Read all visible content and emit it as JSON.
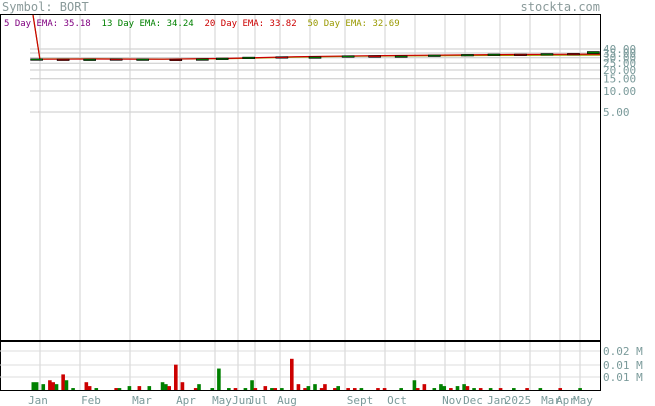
{
  "header": {
    "symbol_label": "Symbol: BORT",
    "brand": "stockta.com"
  },
  "legend": [
    {
      "label": "5 Day EMA:",
      "value": "35.18",
      "color": "#800080"
    },
    {
      "label": "13 Day EMA:",
      "value": "34.24",
      "color": "#008000"
    },
    {
      "label": "20 Day EMA:",
      "value": "33.82",
      "color": "#cc0000"
    },
    {
      "label": "50 Day EMA:",
      "value": "32.69",
      "color": "#999900"
    }
  ],
  "chart_data": {
    "type": "candlestick",
    "price_axis": {
      "scale": "log",
      "ticks": [
        "40.00",
        "35.00",
        "30.00",
        "25.00",
        "20.00",
        "15.00",
        "10.00",
        "5.00"
      ],
      "tick_values": [
        40,
        35,
        30,
        25,
        20,
        15,
        10,
        5
      ]
    },
    "volume_axis": {
      "ticks": [
        "0.02 M",
        "0.01 M",
        "0.01 M"
      ],
      "tick_values": [
        0.02,
        0.015,
        0.01
      ]
    },
    "x_labels": [
      "Jan",
      "Feb",
      "Mar",
      "Apr",
      "May",
      "Jun",
      "Jul",
      "Aug",
      "Sept",
      "Oct",
      "Nov",
      "Dec",
      "Jan",
      "2025",
      "Mar",
      "Apr",
      "May"
    ],
    "grid": true,
    "series": [
      {
        "name": "50 Day EMA",
        "color": "#999900",
        "points": [
          [
            0,
            470
          ],
          [
            3,
            28.8
          ],
          [
            20,
            28.9
          ],
          [
            40,
            28.7
          ],
          [
            60,
            29.0
          ],
          [
            80,
            30.5
          ],
          [
            100,
            31.5
          ],
          [
            120,
            32.0
          ],
          [
            140,
            32.4
          ],
          [
            160,
            32.6
          ],
          [
            172,
            32.69
          ]
        ]
      },
      {
        "name": "20 Day EMA",
        "color": "#cc0000",
        "points": [
          [
            0,
            420
          ],
          [
            3,
            28.6
          ],
          [
            20,
            28.8
          ],
          [
            40,
            28.6
          ],
          [
            60,
            29.3
          ],
          [
            80,
            31.0
          ],
          [
            100,
            32.0
          ],
          [
            120,
            32.6
          ],
          [
            140,
            33.2
          ],
          [
            160,
            33.6
          ],
          [
            172,
            33.82
          ]
        ]
      }
    ],
    "candles": [
      {
        "t": 2,
        "o": 28.5,
        "c": 28.9
      },
      {
        "t": 10,
        "o": 28.7,
        "c": 28.4
      },
      {
        "t": 18,
        "o": 28.4,
        "c": 28.7
      },
      {
        "t": 26,
        "o": 28.9,
        "c": 28.5
      },
      {
        "t": 34,
        "o": 28.4,
        "c": 28.8
      },
      {
        "t": 44,
        "o": 28.6,
        "c": 28.5
      },
      {
        "t": 52,
        "o": 28.6,
        "c": 28.9
      },
      {
        "t": 58,
        "o": 29.1,
        "c": 29.6
      },
      {
        "t": 66,
        "o": 29.8,
        "c": 30.6
      },
      {
        "t": 76,
        "o": 31.0,
        "c": 30.4
      },
      {
        "t": 86,
        "o": 30.5,
        "c": 30.9
      },
      {
        "t": 96,
        "o": 31.2,
        "c": 32.0
      },
      {
        "t": 104,
        "o": 32.0,
        "c": 31.4
      },
      {
        "t": 112,
        "o": 31.6,
        "c": 31.9
      },
      {
        "t": 122,
        "o": 32.2,
        "c": 32.8
      },
      {
        "t": 132,
        "o": 33.0,
        "c": 33.4
      },
      {
        "t": 140,
        "o": 33.1,
        "c": 33.9
      },
      {
        "t": 148,
        "o": 33.8,
        "c": 33.4
      },
      {
        "t": 156,
        "o": 33.6,
        "c": 34.4
      },
      {
        "t": 164,
        "o": 34.6,
        "c": 34.2
      },
      {
        "t": 170,
        "o": 34.4,
        "c": 36.8
      }
    ],
    "volume_bars": [
      {
        "t": 1,
        "v": 0.004,
        "up": true
      },
      {
        "t": 2,
        "v": 0.004,
        "up": true
      },
      {
        "t": 4,
        "v": 0.003,
        "up": true
      },
      {
        "t": 6,
        "v": 0.005,
        "up": false
      },
      {
        "t": 7,
        "v": 0.004,
        "up": false
      },
      {
        "t": 8,
        "v": 0.003,
        "up": true
      },
      {
        "t": 10,
        "v": 0.008,
        "up": false
      },
      {
        "t": 11,
        "v": 0.005,
        "up": true
      },
      {
        "t": 13,
        "v": 0.001,
        "up": true
      },
      {
        "t": 17,
        "v": 0.004,
        "up": false
      },
      {
        "t": 18,
        "v": 0.002,
        "up": false
      },
      {
        "t": 20,
        "v": 0.001,
        "up": true
      },
      {
        "t": 26,
        "v": 0.001,
        "up": false
      },
      {
        "t": 27,
        "v": 0.001,
        "up": true
      },
      {
        "t": 30,
        "v": 0.002,
        "up": true
      },
      {
        "t": 33,
        "v": 0.002,
        "up": false
      },
      {
        "t": 36,
        "v": 0.002,
        "up": true
      },
      {
        "t": 40,
        "v": 0.004,
        "up": true
      },
      {
        "t": 41,
        "v": 0.003,
        "up": true
      },
      {
        "t": 42,
        "v": 0.002,
        "up": false
      },
      {
        "t": 44,
        "v": 0.013,
        "up": false
      },
      {
        "t": 46,
        "v": 0.004,
        "up": false
      },
      {
        "t": 50,
        "v": 0.001,
        "up": false
      },
      {
        "t": 51,
        "v": 0.003,
        "up": true
      },
      {
        "t": 55,
        "v": 0.001,
        "up": true
      },
      {
        "t": 57,
        "v": 0.011,
        "up": true
      },
      {
        "t": 60,
        "v": 0.001,
        "up": true
      },
      {
        "t": 62,
        "v": 0.001,
        "up": false
      },
      {
        "t": 65,
        "v": 0.001,
        "up": true
      },
      {
        "t": 67,
        "v": 0.005,
        "up": true
      },
      {
        "t": 68,
        "v": 0.001,
        "up": false
      },
      {
        "t": 71,
        "v": 0.002,
        "up": false
      },
      {
        "t": 73,
        "v": 0.001,
        "up": true
      },
      {
        "t": 74,
        "v": 0.001,
        "up": false
      },
      {
        "t": 76,
        "v": 0.001,
        "up": true
      },
      {
        "t": 79,
        "v": 0.016,
        "up": false
      },
      {
        "t": 81,
        "v": 0.003,
        "up": false
      },
      {
        "t": 83,
        "v": 0.001,
        "up": false
      },
      {
        "t": 84,
        "v": 0.002,
        "up": true
      },
      {
        "t": 86,
        "v": 0.003,
        "up": true
      },
      {
        "t": 88,
        "v": 0.001,
        "up": false
      },
      {
        "t": 89,
        "v": 0.003,
        "up": false
      },
      {
        "t": 92,
        "v": 0.001,
        "up": false
      },
      {
        "t": 93,
        "v": 0.002,
        "up": true
      },
      {
        "t": 96,
        "v": 0.001,
        "up": false
      },
      {
        "t": 98,
        "v": 0.001,
        "up": false
      },
      {
        "t": 100,
        "v": 0.001,
        "up": true
      },
      {
        "t": 105,
        "v": 0.001,
        "up": false
      },
      {
        "t": 107,
        "v": 0.001,
        "up": false
      },
      {
        "t": 112,
        "v": 0.001,
        "up": true
      },
      {
        "t": 116,
        "v": 0.005,
        "up": true
      },
      {
        "t": 117,
        "v": 0.001,
        "up": false
      },
      {
        "t": 119,
        "v": 0.003,
        "up": false
      },
      {
        "t": 122,
        "v": 0.001,
        "up": true
      },
      {
        "t": 124,
        "v": 0.003,
        "up": true
      },
      {
        "t": 125,
        "v": 0.002,
        "up": true
      },
      {
        "t": 127,
        "v": 0.001,
        "up": false
      },
      {
        "t": 129,
        "v": 0.002,
        "up": true
      },
      {
        "t": 131,
        "v": 0.003,
        "up": true
      },
      {
        "t": 132,
        "v": 0.002,
        "up": false
      },
      {
        "t": 134,
        "v": 0.001,
        "up": true
      },
      {
        "t": 136,
        "v": 0.001,
        "up": false
      },
      {
        "t": 139,
        "v": 0.001,
        "up": true
      },
      {
        "t": 142,
        "v": 0.001,
        "up": false
      },
      {
        "t": 146,
        "v": 0.001,
        "up": true
      },
      {
        "t": 150,
        "v": 0.001,
        "up": false
      },
      {
        "t": 154,
        "v": 0.001,
        "up": true
      },
      {
        "t": 160,
        "v": 0.001,
        "up": false
      },
      {
        "t": 166,
        "v": 0.001,
        "up": true
      }
    ]
  }
}
